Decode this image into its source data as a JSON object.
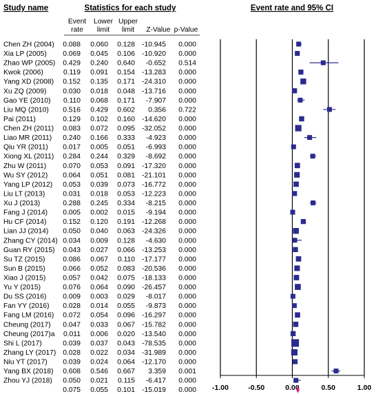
{
  "chart_data": {
    "type": "forest",
    "headers": {
      "study": "Study name",
      "stats_group": "Statistics for each study",
      "plot_group": "Event rate and 95% CI",
      "columns": [
        [
          "Event",
          "rate"
        ],
        [
          "Lower",
          "limit"
        ],
        [
          "Upper",
          "limit"
        ],
        [
          "Z-Value"
        ],
        [
          "p-Value"
        ]
      ]
    },
    "x_axis": {
      "ticks": [
        "-1.00",
        "-0.50",
        "0.00",
        "0.50",
        "1.00"
      ],
      "range": [
        -1,
        1
      ]
    },
    "marker_color": "#2b2b8f",
    "pooled_color": "#e0197d",
    "studies": [
      {
        "name": "Chen ZH (2004)",
        "rate": "0.088",
        "lower": "0.060",
        "upper": "0.128",
        "z": "-10.945",
        "p": "0.000"
      },
      {
        "name": "Xia LP (2005)",
        "rate": "0.069",
        "lower": "0.045",
        "upper": "0.106",
        "z": "-10.920",
        "p": "0.000"
      },
      {
        "name": "Zhao WP (2005)",
        "rate": "0.429",
        "lower": "0.240",
        "upper": "0.640",
        "z": "-0.652",
        "p": "0.514"
      },
      {
        "name": "Kwok (2006)",
        "rate": "0.119",
        "lower": "0.091",
        "upper": "0.154",
        "z": "-13.283",
        "p": "0.000"
      },
      {
        "name": "Yang XD (2008)",
        "rate": "0.152",
        "lower": "0.135",
        "upper": "0.171",
        "z": "-24.310",
        "p": "0.000"
      },
      {
        "name": "Xu ZQ (2009)",
        "rate": "0.030",
        "lower": "0.018",
        "upper": "0.048",
        "z": "-13.716",
        "p": "0.000"
      },
      {
        "name": "Gao YE (2010)",
        "rate": "0.110",
        "lower": "0.068",
        "upper": "0.171",
        "z": "-7.907",
        "p": "0.000"
      },
      {
        "name": "Liu MQ (2010)",
        "rate": "0.516",
        "lower": "0.429",
        "upper": "0.602",
        "z": "0.356",
        "p": "0.722"
      },
      {
        "name": "Pai (2011)",
        "rate": "0.129",
        "lower": "0.102",
        "upper": "0.160",
        "z": "-14.620",
        "p": "0.000"
      },
      {
        "name": "Chen ZH (2011)",
        "rate": "0.083",
        "lower": "0.072",
        "upper": "0.095",
        "z": "-32.052",
        "p": "0.000"
      },
      {
        "name": "Liao MR (2011)",
        "rate": "0.240",
        "lower": "0.166",
        "upper": "0.333",
        "z": "-4.923",
        "p": "0.000"
      },
      {
        "name": "Qiu YR (2011)",
        "rate": "0.017",
        "lower": "0.005",
        "upper": "0.051",
        "z": "-6.993",
        "p": "0.000"
      },
      {
        "name": "Xiong XL (2011)",
        "rate": "0.284",
        "lower": "0.244",
        "upper": "0.329",
        "z": "-8.692",
        "p": "0.000"
      },
      {
        "name": "Zhu W (2011)",
        "rate": "0.070",
        "lower": "0.053",
        "upper": "0.091",
        "z": "-17.320",
        "p": "0.000"
      },
      {
        "name": "Wu SY (2012)",
        "rate": "0.064",
        "lower": "0.051",
        "upper": "0.081",
        "z": "-21.101",
        "p": "0.000"
      },
      {
        "name": "Yang LP (2012)",
        "rate": "0.053",
        "lower": "0.039",
        "upper": "0.073",
        "z": "-16.772",
        "p": "0.000"
      },
      {
        "name": "Liu LT (2013)",
        "rate": "0.031",
        "lower": "0.018",
        "upper": "0.053",
        "z": "-12.223",
        "p": "0.000"
      },
      {
        "name": "Xu J (2013)",
        "rate": "0.288",
        "lower": "0.245",
        "upper": "0.334",
        "z": "-8.215",
        "p": "0.000"
      },
      {
        "name": "Fang J (2014)",
        "rate": "0.005",
        "lower": "0.002",
        "upper": "0.015",
        "z": "-9.194",
        "p": "0.000"
      },
      {
        "name": "Hu CF (2014)",
        "rate": "0.152",
        "lower": "0.120",
        "upper": "0.191",
        "z": "-12.268",
        "p": "0.000"
      },
      {
        "name": "Lian JJ (2014)",
        "rate": "0.050",
        "lower": "0.040",
        "upper": "0.063",
        "z": "-24.326",
        "p": "0.000"
      },
      {
        "name": "Zhang CY (2014)",
        "rate": "0.034",
        "lower": "0.009",
        "upper": "0.128",
        "z": "-4.630",
        "p": "0.000"
      },
      {
        "name": "Guan RY (2015)",
        "rate": "0.043",
        "lower": "0.027",
        "upper": "0.066",
        "z": "-13.253",
        "p": "0.000"
      },
      {
        "name": "Su TZ (2015)",
        "rate": "0.086",
        "lower": "0.067",
        "upper": "0.110",
        "z": "-17.177",
        "p": "0.000"
      },
      {
        "name": "Sun B (2015)",
        "rate": "0.066",
        "lower": "0.052",
        "upper": "0.083",
        "z": "-20.536",
        "p": "0.000"
      },
      {
        "name": "Xiao J (2015)",
        "rate": "0.057",
        "lower": "0.042",
        "upper": "0.075",
        "z": "-18.133",
        "p": "0.000"
      },
      {
        "name": "Yu Y (2015)",
        "rate": "0.076",
        "lower": "0.064",
        "upper": "0.090",
        "z": "-26.457",
        "p": "0.000"
      },
      {
        "name": "Du SS (2016)",
        "rate": "0.009",
        "lower": "0.003",
        "upper": "0.029",
        "z": "-8.017",
        "p": "0.000"
      },
      {
        "name": "Fan YY (2016)",
        "rate": "0.028",
        "lower": "0.014",
        "upper": "0.055",
        "z": "-9.873",
        "p": "0.000"
      },
      {
        "name": "Fang LM (2016)",
        "rate": "0.072",
        "lower": "0.054",
        "upper": "0.096",
        "z": "-16.297",
        "p": "0.000"
      },
      {
        "name": "Cheung (2017)",
        "rate": "0.047",
        "lower": "0.033",
        "upper": "0.067",
        "z": "-15.782",
        "p": "0.000"
      },
      {
        "name": "Cheung (2017)a",
        "rate": "0.011",
        "lower": "0.006",
        "upper": "0.020",
        "z": "-13.540",
        "p": "0.000"
      },
      {
        "name": "Shi L (2017)",
        "rate": "0.039",
        "lower": "0.037",
        "upper": "0.043",
        "z": "-78.535",
        "p": "0.000"
      },
      {
        "name": "Zhang LY (2017)",
        "rate": "0.028",
        "lower": "0.022",
        "upper": "0.034",
        "z": "-31.989",
        "p": "0.000"
      },
      {
        "name": "Niu YT (2017)",
        "rate": "0.039",
        "lower": "0.024",
        "upper": "0.064",
        "z": "-12.170",
        "p": "0.000"
      },
      {
        "name": "Yang BX (2018)",
        "rate": "0.608",
        "lower": "0.546",
        "upper": "0.667",
        "z": "3.359",
        "p": "0.001"
      },
      {
        "name": "Zhou YJ (2018)",
        "rate": "0.050",
        "lower": "0.021",
        "upper": "0.115",
        "z": "-6.417",
        "p": "0.000"
      }
    ],
    "pooled": {
      "name": "",
      "rate": "0.075",
      "lower": "0.055",
      "upper": "0.101",
      "z": "-15.019",
      "p": "0.000"
    }
  }
}
